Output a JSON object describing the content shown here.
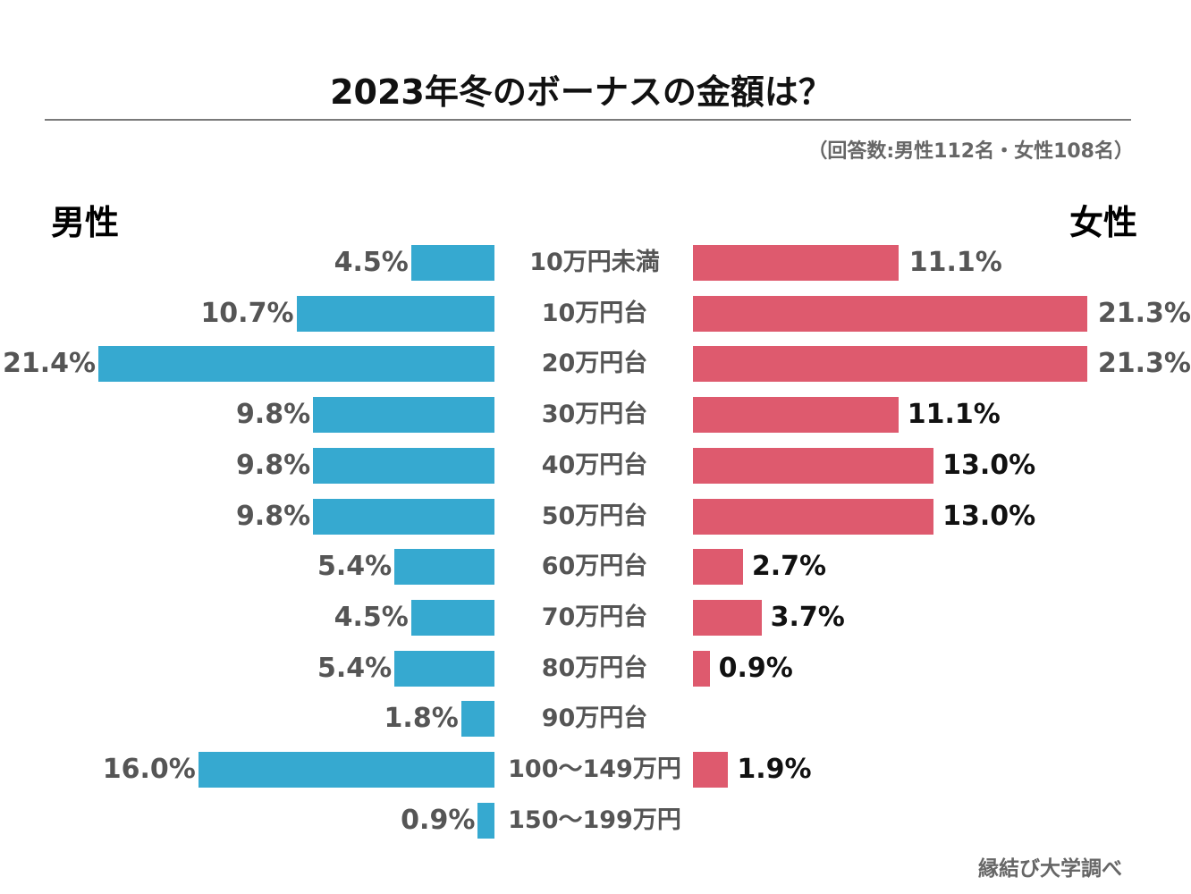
{
  "chart_data": {
    "type": "bar",
    "title": "2023年冬のボーナスの金額は？",
    "subtitle": "（回答数:男性112名・女性108名）",
    "source": "縁結び大学調べ",
    "orientation": "horizontal-butterfly",
    "categories": [
      "10万円未満",
      "10万円台",
      "20万円台",
      "30万円台",
      "40万円台",
      "50万円台",
      "60万円台",
      "70万円台",
      "80万円台",
      "90万円台",
      "100〜149万円",
      "150〜199万円"
    ],
    "series": [
      {
        "name": "男性",
        "color": "#36a9d0",
        "side": "left",
        "values": [
          4.5,
          10.7,
          21.4,
          9.8,
          9.8,
          9.8,
          5.4,
          4.5,
          5.4,
          1.8,
          16.0,
          0.9
        ],
        "labels": [
          "4.5%",
          "10.7%",
          "21.4%",
          "9.8%",
          "9.8%",
          "9.8%",
          "5.4%",
          "4.5%",
          "5.4%",
          "1.8%",
          "16.0%",
          "0.9%"
        ]
      },
      {
        "name": "女性",
        "color": "#de5a6e",
        "side": "right",
        "values": [
          11.1,
          21.3,
          21.3,
          11.1,
          13.0,
          13.0,
          2.7,
          3.7,
          0.9,
          0,
          1.9,
          0
        ],
        "labels": [
          "11.1%",
          "21.3%",
          "21.3%",
          "11.1%",
          "13.0%",
          "13.0%",
          "2.7%",
          "3.7%",
          "0.9%",
          "",
          "1.9%",
          ""
        ]
      }
    ],
    "label_colors": {
      "gray": "#555555",
      "black": "#111111"
    },
    "grid": false
  }
}
